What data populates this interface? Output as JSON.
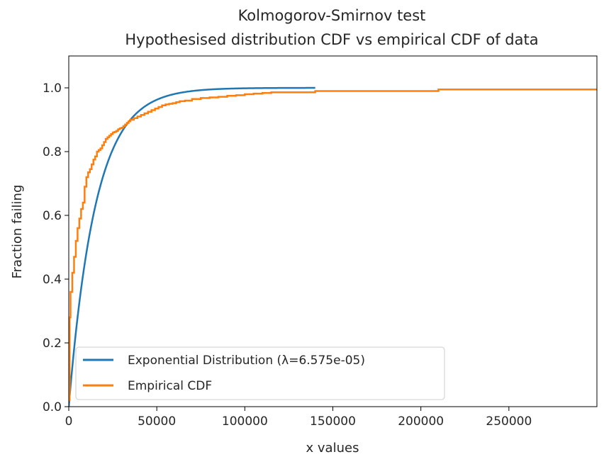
{
  "chart_data": {
    "type": "line",
    "title": [
      "Kolmogorov-Smirnov test",
      "Hypothesised distribution CDF vs empirical CDF of data"
    ],
    "xlabel": "x values",
    "ylabel": "Fraction failing",
    "xlim": [
      0,
      300000
    ],
    "ylim": [
      0.0,
      1.1
    ],
    "xticks": [
      0,
      50000,
      100000,
      150000,
      200000,
      250000
    ],
    "xtick_labels": [
      "0",
      "50000",
      "100000",
      "150000",
      "200000",
      "250000"
    ],
    "yticks": [
      0.0,
      0.2,
      0.4,
      0.6,
      0.8,
      1.0
    ],
    "ytick_labels": [
      "0.0",
      "0.2",
      "0.4",
      "0.6",
      "0.8",
      "1.0"
    ],
    "grid": false,
    "legend_position": "lower-left",
    "series": [
      {
        "name": "Exponential Distribution (λ=6.575e-05)",
        "kind": "exponential_cdf",
        "lambda": 6.575e-05,
        "x_range": [
          0,
          140000
        ],
        "color": "#1f77b4"
      },
      {
        "name": "Empirical CDF",
        "kind": "step",
        "color": "#ff7f0e",
        "x": [
          0,
          500,
          1000,
          2000,
          3000,
          4000,
          5000,
          6000,
          7000,
          8000,
          9000,
          10000,
          11000,
          12000,
          13000,
          14000,
          15000,
          16000,
          17000,
          18000,
          19000,
          20000,
          21000,
          22000,
          23000,
          24000,
          25000,
          26000,
          27000,
          28000,
          29000,
          30000,
          31000,
          32000,
          33000,
          34000,
          35000,
          37000,
          39000,
          41000,
          43000,
          45000,
          47000,
          49000,
          51000,
          53000,
          55000,
          57000,
          59000,
          61000,
          63000,
          66000,
          70000,
          75000,
          80000,
          85000,
          90000,
          95000,
          100000,
          105000,
          110000,
          115000,
          140000,
          210000,
          300000
        ],
        "y": [
          0.02,
          0.28,
          0.36,
          0.42,
          0.47,
          0.52,
          0.56,
          0.59,
          0.62,
          0.64,
          0.69,
          0.72,
          0.735,
          0.745,
          0.76,
          0.775,
          0.785,
          0.8,
          0.805,
          0.81,
          0.82,
          0.83,
          0.84,
          0.845,
          0.85,
          0.855,
          0.86,
          0.862,
          0.865,
          0.87,
          0.873,
          0.875,
          0.88,
          0.885,
          0.89,
          0.895,
          0.9,
          0.905,
          0.91,
          0.915,
          0.92,
          0.925,
          0.93,
          0.935,
          0.94,
          0.945,
          0.948,
          0.95,
          0.952,
          0.955,
          0.958,
          0.96,
          0.965,
          0.968,
          0.97,
          0.972,
          0.975,
          0.977,
          0.98,
          0.982,
          0.984,
          0.986,
          0.99,
          0.995,
          0.995
        ]
      }
    ]
  }
}
